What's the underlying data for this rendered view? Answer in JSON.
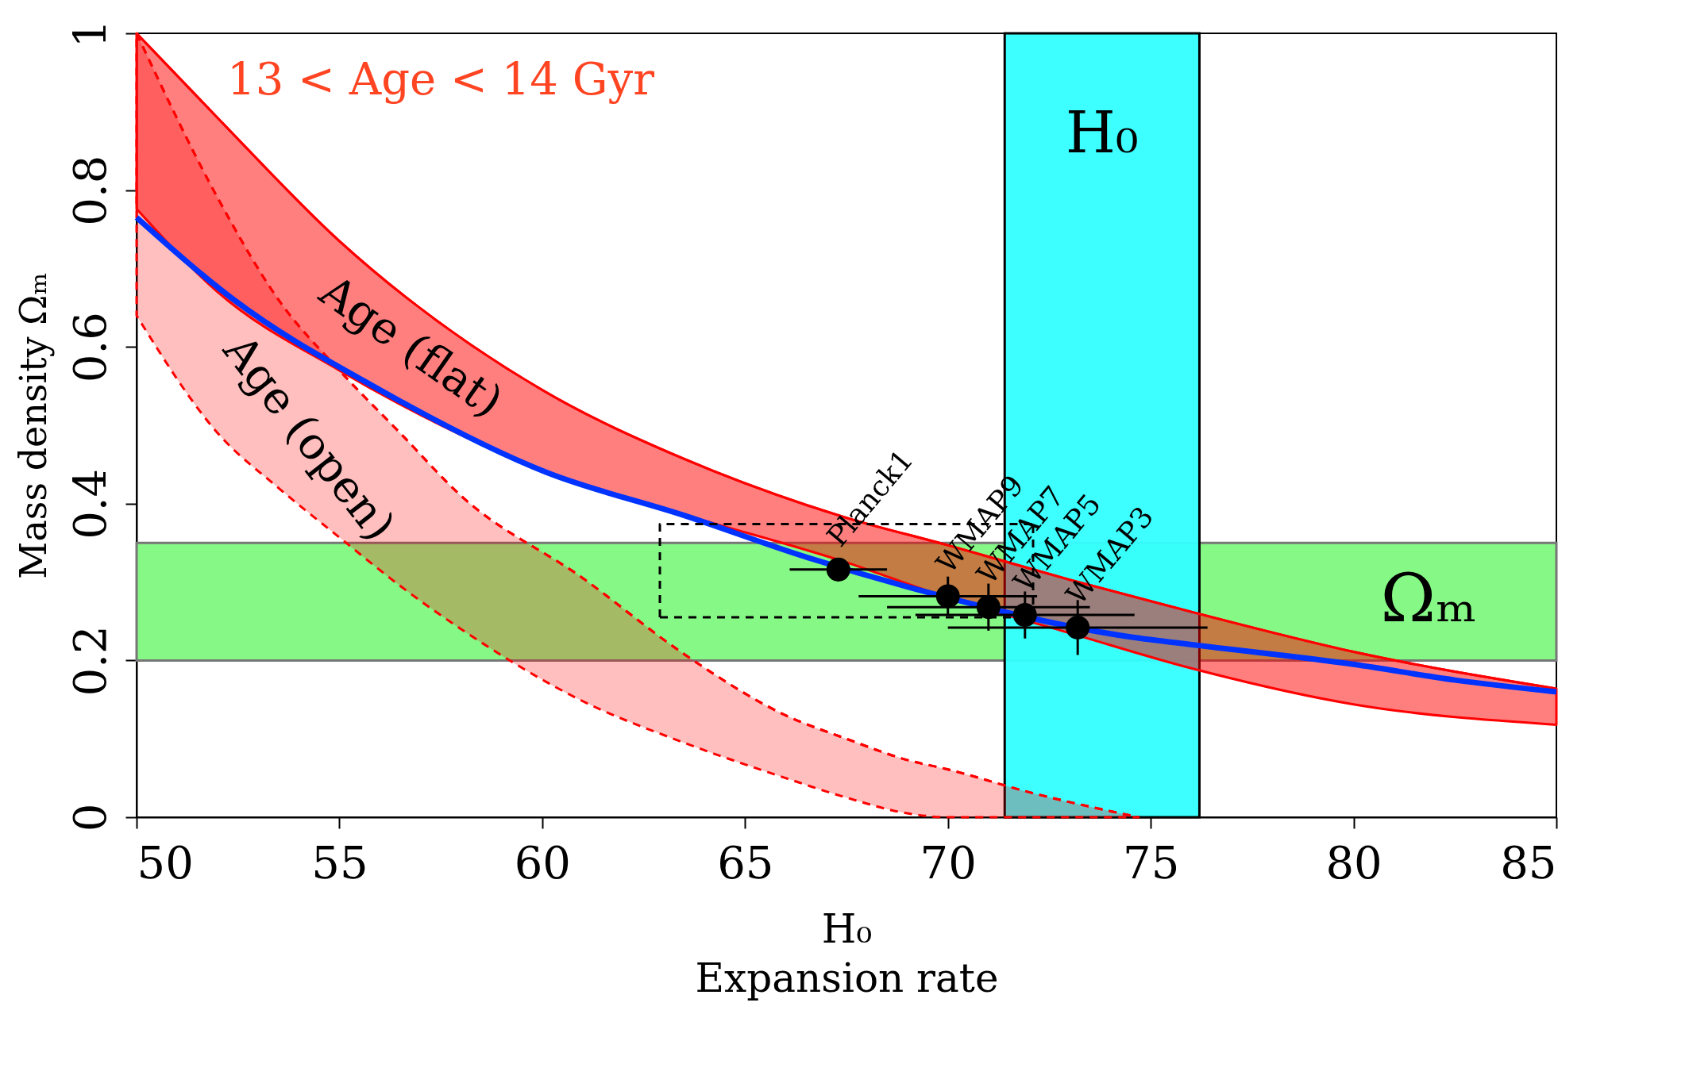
{
  "chart_data": {
    "type": "line",
    "xlabel": "H₀\nExpansion rate",
    "ylabel": "Mass density  Ωₘ",
    "xlim": [
      50,
      85
    ],
    "xticks": [
      50,
      55,
      60,
      65,
      70,
      75,
      80,
      85
    ],
    "ylim": [
      0,
      1
    ],
    "yticks": [
      0,
      0.2,
      0.4,
      0.6,
      0.8,
      1
    ],
    "grid": false,
    "bands": [
      {
        "axis": "y",
        "from": 0.2,
        "to": 0.35,
        "label": "Ωₘ",
        "color": "#80f880"
      },
      {
        "axis": "x",
        "from": 71.4,
        "to": 76.2,
        "label": "H₀",
        "color": "#33ffff"
      }
    ],
    "series": [
      {
        "type": "line",
        "color": "#ff0000",
        "line_style": "dashed",
        "x": [
          50,
          52,
          53.5,
          55,
          56.5,
          58,
          61,
          63.5,
          66,
          67.5,
          69,
          70,
          72,
          74.7
        ],
        "values": [
          1.0,
          0.79,
          0.66,
          0.57,
          0.49,
          0.41,
          0.305,
          0.208,
          0.13,
          0.1,
          0.073,
          0.061,
          0.032,
          0
        ],
        "lower": [
          0.64,
          0.49,
          0.42,
          0.357,
          0.295,
          0.24,
          0.148,
          0.095,
          0.05,
          0.025,
          0.005,
          0,
          0,
          0
        ],
        "upper": [
          1.0,
          0.79,
          0.66,
          0.57,
          0.49,
          0.41,
          0.305,
          0.208,
          0.13,
          0.1,
          0.073,
          0.061,
          0.032,
          0
        ]
      },
      {
        "type": "line",
        "color": "#ff0000",
        "line_style": "solid",
        "x": [
          50,
          52,
          55,
          60,
          63.5,
          67.5,
          70,
          73,
          76,
          80,
          85
        ],
        "values": [
          1.0,
          0.892,
          0.735,
          0.545,
          0.457,
          0.382,
          0.347,
          0.303,
          0.262,
          0.211,
          0.164
        ],
        "lower": [
          0.776,
          0.67,
          0.57,
          0.443,
          0.386,
          0.325,
          0.28,
          0.235,
          0.19,
          0.144,
          0.118
        ],
        "upper": [
          1.0,
          0.892,
          0.735,
          0.545,
          0.457,
          0.382,
          0.347,
          0.303,
          0.262,
          0.211,
          0.164
        ]
      },
      {
        "type": "line",
        "color": "#0033ff",
        "x": [
          50,
          52.4,
          55.9,
          60.1,
          63.5,
          66.5,
          69,
          74.5,
          76.2,
          80,
          82.5,
          85
        ],
        "values": [
          0.765,
          0.66,
          0.548,
          0.44,
          0.385,
          0.332,
          0.294,
          0.23,
          0.219,
          0.195,
          0.175,
          0.16
        ]
      },
      {
        "type": "line",
        "color": "#000000",
        "line_style": "dashed",
        "x": [
          62.9,
          62.9,
          72.1
        ],
        "values": [
          0.255,
          0.374,
          0.374
        ]
      },
      {
        "type": "line",
        "color": "#000000",
        "line_style": "dashed",
        "x": [
          62.9,
          72.1,
          72.1
        ],
        "values": [
          0.255,
          0.255,
          0.374
        ]
      },
      {
        "type": "scatter",
        "color": "#000000",
        "marker": "circle",
        "x": [
          67.3,
          70.0,
          71.0,
          71.9,
          73.2
        ],
        "values": [
          0.316,
          0.282,
          0.268,
          0.258,
          0.242
        ],
        "errors": [
          0.015,
          0.025,
          0.03,
          0.03,
          0.035
        ],
        "xerrors": [
          1.2,
          2.2,
          2.5,
          2.7,
          3.2
        ]
      }
    ],
    "annotations": [
      "13 < Age < 14 Gyr",
      "Age (flat)",
      "Age (open)",
      {
        "text": "Planck1",
        "x": 67.3,
        "y": 0.316
      },
      {
        "text": "WMAP9",
        "x": 70.0,
        "y": 0.282
      },
      {
        "text": "WMAP7",
        "x": 71.0,
        "y": 0.268
      },
      {
        "text": "WMAP5",
        "x": 71.9,
        "y": 0.258
      },
      {
        "text": "WMAP3",
        "x": 73.2,
        "y": 0.242
      }
    ]
  }
}
